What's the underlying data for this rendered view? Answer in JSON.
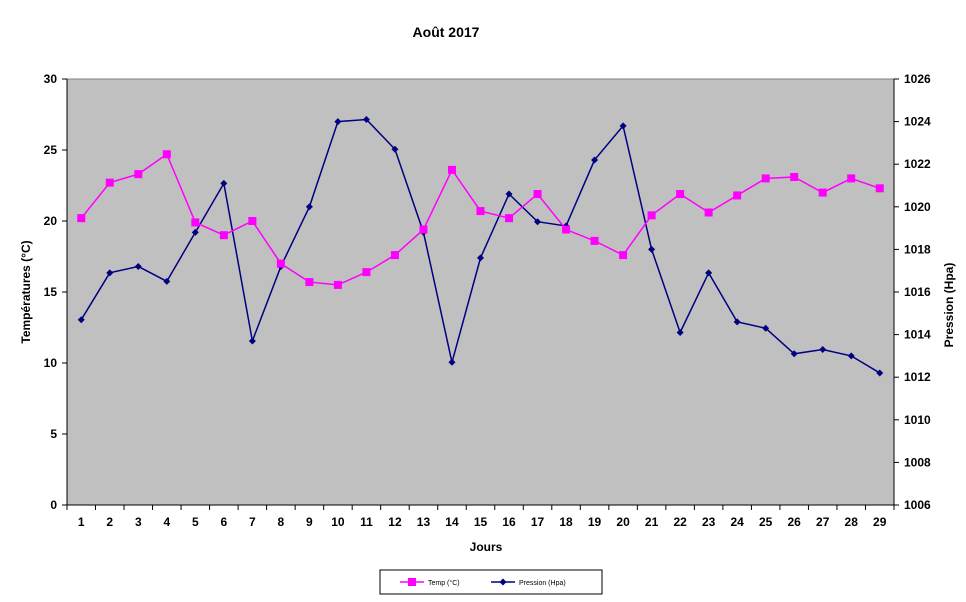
{
  "chart_data": {
    "type": "line",
    "title": "Août 2017",
    "xlabel": "Jours",
    "ylabel_left": "Températures (°C)",
    "ylabel_right": "Pression (Hpa)",
    "x": [
      1,
      2,
      3,
      4,
      5,
      6,
      7,
      8,
      9,
      10,
      11,
      12,
      13,
      14,
      15,
      16,
      17,
      18,
      19,
      20,
      21,
      22,
      23,
      24,
      25,
      26,
      27,
      28,
      29
    ],
    "ylim_left": [
      0,
      30
    ],
    "yticks_left": [
      0,
      5,
      10,
      15,
      20,
      25,
      30
    ],
    "ylim_right": [
      1006,
      1026
    ],
    "yticks_right": [
      1006,
      1008,
      1010,
      1012,
      1014,
      1016,
      1018,
      1020,
      1022,
      1024,
      1026
    ],
    "grid": false,
    "legend_position": "bottom",
    "plot_background": "#c0c0c0",
    "series": [
      {
        "name": "Temp (°C)",
        "axis": "left",
        "color": "#ff00ff",
        "marker": "square",
        "values": [
          20.2,
          22.7,
          23.3,
          24.7,
          19.9,
          19.0,
          20.0,
          17.0,
          15.7,
          15.5,
          16.4,
          17.6,
          19.4,
          23.6,
          20.7,
          20.2,
          21.9,
          19.4,
          18.6,
          17.6,
          20.4,
          21.9,
          20.6,
          21.8,
          23.0,
          23.1,
          22.0,
          23.0,
          22.3
        ]
      },
      {
        "name": "Pression (Hpa)",
        "axis": "right",
        "color": "#000080",
        "marker": "diamond",
        "values": [
          1014.7,
          1016.9,
          1017.2,
          1016.5,
          1018.8,
          1021.1,
          1013.7,
          1017.2,
          1020.0,
          1024.0,
          1024.1,
          1022.7,
          1018.8,
          1012.7,
          1017.6,
          1020.6,
          1019.3,
          1019.1,
          1022.2,
          1023.8,
          1018.0,
          1014.1,
          1016.9,
          1014.6,
          1014.3,
          1013.1,
          1013.3,
          1013.0,
          1012.2
        ]
      }
    ]
  }
}
